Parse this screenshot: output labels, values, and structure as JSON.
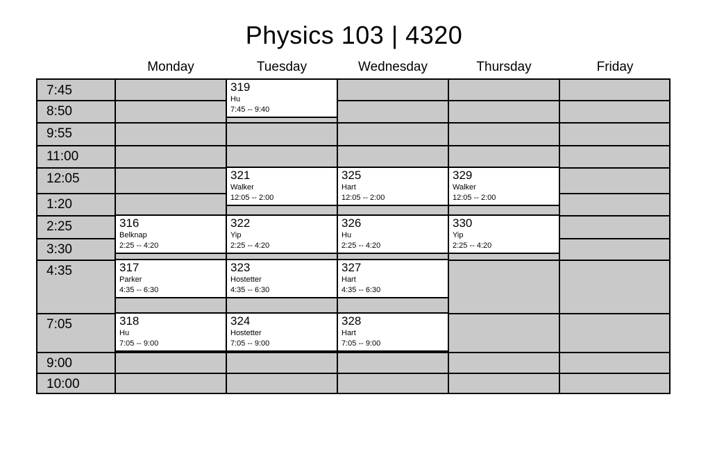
{
  "title": "Physics 103 | 4320",
  "colors": {
    "cell_bg": "#c9c9c9",
    "event_bg": "#ffffff",
    "line": "#000000",
    "text": "#000000",
    "page_bg": "#ffffff"
  },
  "days": [
    "Monday",
    "Tuesday",
    "Wednesday",
    "Thursday",
    "Friday"
  ],
  "time_rows": [
    "7:45",
    "8:50",
    "9:55",
    "11:00",
    "12:05",
    "1:20",
    "2:25",
    "3:30",
    "4:35",
    "7:05",
    "9:00",
    "10:00"
  ],
  "events": [
    {
      "section": "316",
      "instructor": "Belknap",
      "time_range": "2:25 -- 4:20",
      "day": "Monday",
      "start_row": "2:25"
    },
    {
      "section": "317",
      "instructor": "Parker",
      "time_range": "4:35 -- 6:30",
      "day": "Monday",
      "start_row": "4:35"
    },
    {
      "section": "318",
      "instructor": "Hu",
      "time_range": "7:05 -- 9:00",
      "day": "Monday",
      "start_row": "7:05"
    },
    {
      "section": "319",
      "instructor": "Hu",
      "time_range": "7:45 -- 9:40",
      "day": "Tuesday",
      "start_row": "7:45"
    },
    {
      "section": "321",
      "instructor": "Walker",
      "time_range": "12:05 -- 2:00",
      "day": "Tuesday",
      "start_row": "12:05"
    },
    {
      "section": "322",
      "instructor": "Yip",
      "time_range": "2:25 -- 4:20",
      "day": "Tuesday",
      "start_row": "2:25"
    },
    {
      "section": "323",
      "instructor": "Hostetter",
      "time_range": "4:35 -- 6:30",
      "day": "Tuesday",
      "start_row": "4:35"
    },
    {
      "section": "324",
      "instructor": "Hostetter",
      "time_range": "7:05 -- 9:00",
      "day": "Tuesday",
      "start_row": "7:05"
    },
    {
      "section": "325",
      "instructor": "Hart",
      "time_range": "12:05 -- 2:00",
      "day": "Wednesday",
      "start_row": "12:05"
    },
    {
      "section": "326",
      "instructor": "Hu",
      "time_range": "2:25 -- 4:20",
      "day": "Wednesday",
      "start_row": "2:25"
    },
    {
      "section": "327",
      "instructor": "Hart",
      "time_range": "4:35 -- 6:30",
      "day": "Wednesday",
      "start_row": "4:35"
    },
    {
      "section": "328",
      "instructor": "Hart",
      "time_range": "7:05 -- 9:00",
      "day": "Wednesday",
      "start_row": "7:05"
    },
    {
      "section": "329",
      "instructor": "Walker",
      "time_range": "12:05 -- 2:00",
      "day": "Thursday",
      "start_row": "12:05"
    },
    {
      "section": "330",
      "instructor": "Yip",
      "time_range": "2:25 -- 4:20",
      "day": "Thursday",
      "start_row": "2:25"
    }
  ]
}
